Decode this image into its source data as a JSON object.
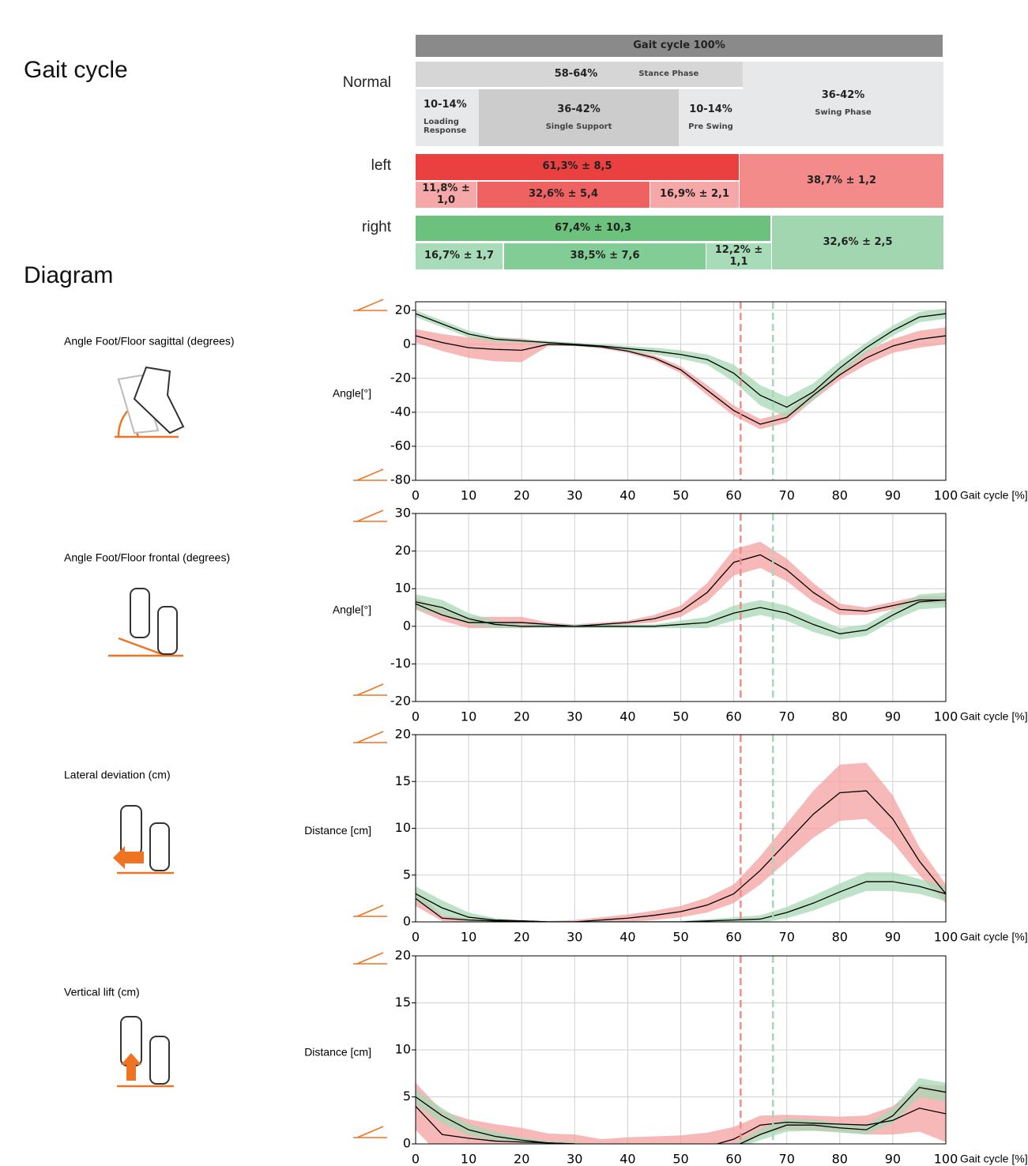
{
  "header": {
    "title": "Gait cycle",
    "diagram_title": "Diagram"
  },
  "phases": {
    "title": "Gait cycle 100%",
    "rows": [
      {
        "label": "Normal",
        "cells": [
          {
            "text": "58-64%",
            "sub": "Stance Phase"
          },
          {
            "text": "36-42%",
            "sub": "Swing Phase"
          },
          {
            "text": "10-14%",
            "sub": "Loading Response"
          },
          {
            "text": "36-42%",
            "sub": "Single Support"
          },
          {
            "text": "10-14%",
            "sub": "Pre Swing"
          }
        ]
      },
      {
        "label": "left",
        "cells": [
          {
            "text": "61,3% ± 8,5"
          },
          {
            "text": "38,7% ± 1,2"
          },
          {
            "text": "11,8% ± 1,0"
          },
          {
            "text": "32,6% ± 5,4"
          },
          {
            "text": "16,9% ± 2,1"
          }
        ]
      },
      {
        "label": "right",
        "cells": [
          {
            "text": "67,4% ± 10,3"
          },
          {
            "text": "32,6% ± 2,5"
          },
          {
            "text": "16,7% ± 1,7"
          },
          {
            "text": "38,5% ± 7,6"
          },
          {
            "text": "12,2% ± 1,1"
          }
        ]
      }
    ]
  },
  "chart_data": [
    {
      "type": "line",
      "label": "Angle Foot/Floor sagittal (degrees)",
      "ylabel": "Angle[°]",
      "xlabel": "Gait cycle [%]",
      "x": [
        0,
        5,
        10,
        15,
        20,
        25,
        30,
        35,
        40,
        45,
        50,
        55,
        60,
        65,
        70,
        75,
        80,
        85,
        90,
        95,
        100
      ],
      "xlim": [
        0,
        100
      ],
      "xticks": [
        0,
        10,
        20,
        30,
        40,
        50,
        60,
        70,
        80,
        90,
        100
      ],
      "ylim": [
        -80,
        25
      ],
      "yticks": [
        -80,
        -60,
        -40,
        -20,
        0,
        20
      ],
      "grid": true,
      "vlines": [
        {
          "value": 61.3,
          "color": "#f08c8c"
        },
        {
          "value": 67.4,
          "color": "#a6d8b6"
        }
      ],
      "series": [
        {
          "color": "#f4a0a0",
          "line_color": "#000000",
          "values": [
            5,
            1,
            -2,
            -3,
            -3.5,
            0,
            -0.5,
            -1.5,
            -4,
            -8,
            -15,
            -27,
            -39,
            -47,
            -43,
            -30,
            -18,
            -8,
            -1,
            3,
            5
          ],
          "sd": [
            4,
            5,
            6,
            7,
            7,
            1,
            0.5,
            1,
            1,
            1.5,
            2,
            3,
            3,
            3,
            3,
            3,
            3,
            4,
            4,
            5,
            5
          ]
        },
        {
          "color": "#a8d8b4",
          "line_color": "#000000",
          "values": [
            18,
            12,
            6,
            3,
            2,
            1,
            0,
            -1,
            -2.5,
            -4,
            -6,
            -9,
            -17,
            -30,
            -37,
            -28,
            -14,
            -2,
            8,
            16,
            18
          ],
          "sd": [
            2,
            2,
            2,
            1.5,
            1,
            1,
            1,
            1,
            1.5,
            2,
            2.5,
            3,
            5,
            6,
            6,
            5,
            4,
            3,
            3,
            3,
            3
          ]
        }
      ]
    },
    {
      "type": "line",
      "label": "Angle Foot/Floor frontal (degrees)",
      "ylabel": "Angle[°]",
      "xlabel": "Gait cycle [%]",
      "x": [
        0,
        5,
        10,
        15,
        20,
        25,
        30,
        35,
        40,
        45,
        50,
        55,
        60,
        65,
        70,
        75,
        80,
        85,
        90,
        95,
        100
      ],
      "xlim": [
        0,
        100
      ],
      "xticks": [
        0,
        10,
        20,
        30,
        40,
        50,
        60,
        70,
        80,
        90,
        100
      ],
      "ylim": [
        -20,
        30
      ],
      "yticks": [
        -20,
        -10,
        0,
        10,
        20,
        30
      ],
      "grid": true,
      "vlines": [
        {
          "value": 61.3,
          "color": "#f08c8c"
        },
        {
          "value": 67.4,
          "color": "#a6d8b6"
        }
      ],
      "series": [
        {
          "color": "#f4a0a0",
          "line_color": "#000000",
          "values": [
            6,
            3,
            1,
            1,
            1,
            0.5,
            0,
            0.5,
            1,
            2,
            4,
            9,
            17,
            19,
            15,
            9,
            4.5,
            4,
            5.5,
            7,
            7
          ],
          "sd": [
            1.5,
            1.5,
            1.5,
            1.5,
            1.5,
            0.5,
            0.5,
            0.5,
            0.5,
            1,
            1.5,
            2.5,
            3.5,
            3.5,
            3,
            2.5,
            1.5,
            1,
            1,
            1,
            1
          ]
        },
        {
          "color": "#a8d8b4",
          "line_color": "#000000",
          "values": [
            6.5,
            5,
            2,
            0.5,
            0,
            0,
            0,
            0,
            0,
            0,
            0.5,
            1,
            3.5,
            5,
            3.5,
            0.5,
            -2,
            -1,
            3,
            6.5,
            7
          ],
          "sd": [
            2,
            2,
            1.5,
            1,
            0.5,
            0.5,
            0.5,
            0.5,
            0.5,
            0.5,
            1,
            1.5,
            2,
            2,
            2,
            2,
            1.5,
            1.5,
            1.5,
            2,
            2
          ]
        }
      ]
    },
    {
      "type": "line",
      "label": "Lateral deviation (cm)",
      "ylabel": "Distance [cm]",
      "xlabel": "Gait cycle [%]",
      "x": [
        0,
        5,
        10,
        15,
        20,
        25,
        30,
        35,
        40,
        45,
        50,
        55,
        60,
        65,
        70,
        75,
        80,
        85,
        90,
        95,
        100
      ],
      "xlim": [
        0,
        100
      ],
      "xticks": [
        0,
        10,
        20,
        30,
        40,
        50,
        60,
        70,
        80,
        90,
        100
      ],
      "ylim": [
        0,
        20
      ],
      "yticks": [
        0,
        5,
        10,
        15,
        20
      ],
      "grid": true,
      "vlines": [
        {
          "value": 61.3,
          "color": "#f08c8c"
        },
        {
          "value": 67.4,
          "color": "#a6d8b6"
        }
      ],
      "series": [
        {
          "color": "#f4a0a0",
          "line_color": "#000000",
          "values": [
            2.5,
            0.4,
            0.2,
            0.1,
            0.1,
            0,
            0,
            0.2,
            0.4,
            0.7,
            1.1,
            1.8,
            3,
            5.5,
            8.5,
            11.5,
            13.8,
            14,
            11,
            6.5,
            3
          ],
          "sd": [
            0.8,
            0.3,
            0.2,
            0.1,
            0.1,
            0.1,
            0.2,
            0.3,
            0.4,
            0.5,
            0.6,
            0.8,
            1,
            1.5,
            2,
            2.5,
            3,
            3,
            2.5,
            1.5,
            1
          ]
        },
        {
          "color": "#a8d8b4",
          "line_color": "#000000",
          "values": [
            3,
            1.5,
            0.5,
            0.2,
            0.1,
            0,
            0,
            0,
            0,
            0,
            0,
            0.1,
            0.2,
            0.3,
            1,
            2,
            3.2,
            4.3,
            4.3,
            3.8,
            3
          ],
          "sd": [
            0.8,
            0.8,
            0.5,
            0.2,
            0.1,
            0.1,
            0.1,
            0.1,
            0.1,
            0.1,
            0.1,
            0.2,
            0.3,
            0.4,
            0.6,
            0.8,
            0.9,
            1,
            1,
            0.8,
            0.8
          ]
        }
      ]
    },
    {
      "type": "line",
      "label": "Vertical lift (cm)",
      "ylabel": "Distance [cm]",
      "xlabel": "Gait cycle [%]",
      "x": [
        0,
        5,
        10,
        15,
        20,
        25,
        30,
        35,
        40,
        45,
        50,
        55,
        60,
        65,
        70,
        75,
        80,
        85,
        90,
        95,
        100
      ],
      "xlim": [
        0,
        100
      ],
      "xticks": [
        0,
        10,
        20,
        30,
        40,
        50,
        60,
        70,
        80,
        90,
        100
      ],
      "ylim": [
        0,
        20
      ],
      "yticks": [
        0,
        5,
        10,
        15,
        20
      ],
      "grid": true,
      "vlines": [
        {
          "value": 61.3,
          "color": "#f08c8c"
        },
        {
          "value": 67.4,
          "color": "#a6d8b6"
        }
      ],
      "series": [
        {
          "color": "#f4a0a0",
          "line_color": "#000000",
          "values": [
            4,
            1,
            0.6,
            0.3,
            0.2,
            0.1,
            0,
            -0.5,
            -0.5,
            -0.5,
            -0.5,
            -0.3,
            0.5,
            2,
            2.3,
            2.2,
            2.1,
            2,
            2.5,
            3.8,
            3.2
          ],
          "sd": [
            2.5,
            2.5,
            2,
            1.8,
            1.5,
            1,
            1,
            1,
            1.2,
            1.3,
            1.4,
            1.5,
            1.3,
            1,
            0.8,
            0.8,
            0.8,
            1,
            1.5,
            2.5,
            3
          ]
        },
        {
          "color": "#a8d8b4",
          "line_color": "#000000",
          "values": [
            5,
            3,
            1.5,
            0.8,
            0.4,
            0.1,
            0,
            -0.5,
            -0.8,
            -1,
            -1,
            -0.8,
            -0.3,
            1,
            2,
            2,
            1.7,
            1.5,
            3,
            6,
            5.5
          ],
          "sd": [
            0.8,
            0.8,
            0.6,
            0.5,
            0.3,
            0.2,
            0.2,
            0.2,
            0.2,
            0.2,
            0.2,
            0.2,
            0.3,
            0.6,
            0.7,
            0.6,
            0.5,
            0.5,
            0.8,
            1,
            1
          ]
        }
      ]
    }
  ]
}
